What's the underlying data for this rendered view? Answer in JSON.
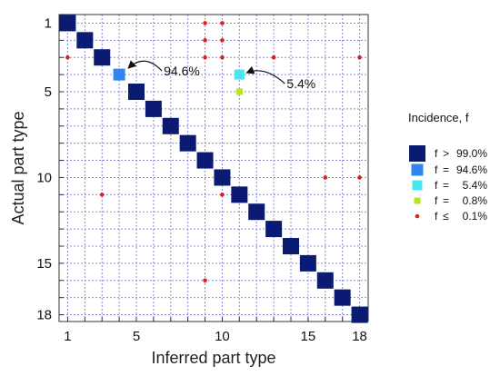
{
  "chart_data": {
    "type": "heatmap",
    "xlabel": "Inferred part type",
    "ylabel": "Actual part type",
    "xlim": [
      1,
      18
    ],
    "ylim": [
      1,
      18
    ],
    "x_tick_labels": [
      "1",
      "5",
      "10",
      "15",
      "18"
    ],
    "y_tick_labels": [
      "1",
      "5",
      "10",
      "15",
      "18"
    ],
    "grid": true,
    "colors": {
      "gt99": "#0b1a72",
      "p94_6": "#2f86f0",
      "p5_4": "#47e6f0",
      "p0_8": "#b9e31e",
      "le0_1": "#e02020"
    },
    "cells": [
      {
        "actual": 1,
        "inferred": 1,
        "cls": "gt99"
      },
      {
        "actual": 2,
        "inferred": 2,
        "cls": "gt99"
      },
      {
        "actual": 3,
        "inferred": 3,
        "cls": "gt99"
      },
      {
        "actual": 4,
        "inferred": 4,
        "cls": "p94_6"
      },
      {
        "actual": 4,
        "inferred": 11,
        "cls": "p5_4"
      },
      {
        "actual": 5,
        "inferred": 5,
        "cls": "gt99"
      },
      {
        "actual": 5,
        "inferred": 11,
        "cls": "p0_8"
      },
      {
        "actual": 6,
        "inferred": 6,
        "cls": "gt99"
      },
      {
        "actual": 7,
        "inferred": 7,
        "cls": "gt99"
      },
      {
        "actual": 8,
        "inferred": 8,
        "cls": "gt99"
      },
      {
        "actual": 9,
        "inferred": 9,
        "cls": "gt99"
      },
      {
        "actual": 10,
        "inferred": 10,
        "cls": "gt99"
      },
      {
        "actual": 11,
        "inferred": 11,
        "cls": "gt99"
      },
      {
        "actual": 12,
        "inferred": 12,
        "cls": "gt99"
      },
      {
        "actual": 13,
        "inferred": 13,
        "cls": "gt99"
      },
      {
        "actual": 14,
        "inferred": 14,
        "cls": "gt99"
      },
      {
        "actual": 15,
        "inferred": 15,
        "cls": "gt99"
      },
      {
        "actual": 16,
        "inferred": 16,
        "cls": "gt99"
      },
      {
        "actual": 17,
        "inferred": 17,
        "cls": "gt99"
      },
      {
        "actual": 18,
        "inferred": 18,
        "cls": "gt99"
      },
      {
        "actual": 1,
        "inferred": 9,
        "cls": "le0_1"
      },
      {
        "actual": 1,
        "inferred": 10,
        "cls": "le0_1"
      },
      {
        "actual": 2,
        "inferred": 9,
        "cls": "le0_1"
      },
      {
        "actual": 2,
        "inferred": 10,
        "cls": "le0_1"
      },
      {
        "actual": 3,
        "inferred": 1,
        "cls": "le0_1"
      },
      {
        "actual": 3,
        "inferred": 9,
        "cls": "le0_1"
      },
      {
        "actual": 3,
        "inferred": 10,
        "cls": "le0_1"
      },
      {
        "actual": 3,
        "inferred": 13,
        "cls": "le0_1"
      },
      {
        "actual": 3,
        "inferred": 18,
        "cls": "le0_1"
      },
      {
        "actual": 10,
        "inferred": 16,
        "cls": "le0_1"
      },
      {
        "actual": 10,
        "inferred": 18,
        "cls": "le0_1"
      },
      {
        "actual": 11,
        "inferred": 3,
        "cls": "le0_1"
      },
      {
        "actual": 11,
        "inferred": 10,
        "cls": "le0_1"
      },
      {
        "actual": 16,
        "inferred": 9,
        "cls": "le0_1"
      }
    ],
    "annotations": [
      {
        "text": "94.6%",
        "actual": 4,
        "inferred": 4
      },
      {
        "text": "5.4%",
        "actual": 4,
        "inferred": 11
      }
    ],
    "legend": {
      "title": "Incidence, f",
      "placement": "right",
      "entries": [
        {
          "cls": "gt99",
          "symbol": "f",
          "op": ">",
          "value": "99.0%"
        },
        {
          "cls": "p94_6",
          "symbol": "f",
          "op": "=",
          "value": "94.6%"
        },
        {
          "cls": "p5_4",
          "symbol": "f",
          "op": "=",
          "value": "5.4%"
        },
        {
          "cls": "p0_8",
          "symbol": "f",
          "op": "=",
          "value": "0.8%"
        },
        {
          "cls": "le0_1",
          "symbol": "f",
          "op": "≤",
          "value": "0.1%"
        }
      ]
    }
  }
}
